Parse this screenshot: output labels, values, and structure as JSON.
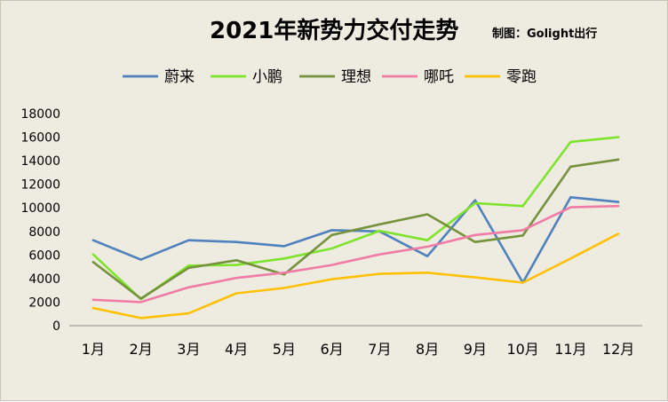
{
  "chart_data": {
    "type": "line",
    "title": "2021年新势力交付走势",
    "credit": "制图：Golight出行",
    "categories": [
      "1月",
      "2月",
      "3月",
      "4月",
      "5月",
      "6月",
      "7月",
      "8月",
      "9月",
      "10月",
      "11月",
      "12月"
    ],
    "ylim": [
      0,
      18000
    ],
    "yticks": [
      0,
      2000,
      4000,
      6000,
      8000,
      10000,
      12000,
      14000,
      16000,
      18000
    ],
    "grid": false,
    "legend_position": "top",
    "series": [
      {
        "name": "蔚来",
        "color": "#4f81bd",
        "values": [
          7250,
          5600,
          7250,
          7100,
          6750,
          8100,
          8000,
          5900,
          10650,
          3650,
          10900,
          10500
        ]
      },
      {
        "name": "小鹏",
        "color": "#7ee32b",
        "values": [
          6050,
          2250,
          5100,
          5150,
          5700,
          6550,
          8050,
          7250,
          10400,
          10150,
          15600,
          16000
        ]
      },
      {
        "name": "理想",
        "color": "#76923c",
        "values": [
          5400,
          2300,
          4900,
          5550,
          4350,
          7700,
          8600,
          9450,
          7100,
          7650,
          13500,
          14100
        ]
      },
      {
        "name": "哪吒",
        "color": "#f07ca6",
        "values": [
          2200,
          2000,
          3250,
          4050,
          4500,
          5150,
          6050,
          6700,
          7700,
          8100,
          10050,
          10150
        ]
      },
      {
        "name": "零跑",
        "color": "#ffc000",
        "values": [
          1500,
          650,
          1050,
          2750,
          3200,
          3950,
          4400,
          4500,
          4100,
          3650,
          5700,
          7800
        ]
      }
    ]
  }
}
